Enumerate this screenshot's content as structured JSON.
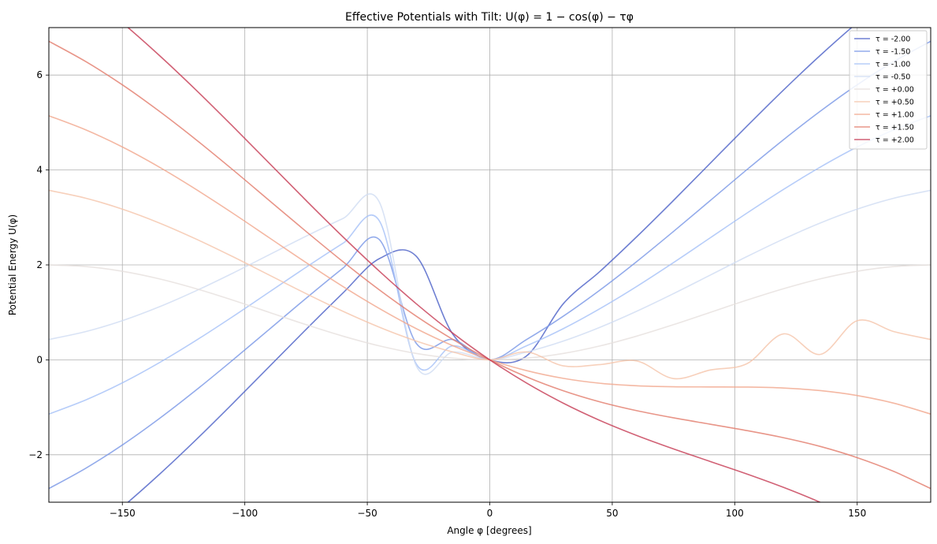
{
  "chart_data": {
    "type": "line",
    "title": "Effective Potentials with Tilt: U(φ) = 1 − cos(φ) − τφ",
    "xlabel": "Angle φ [degrees]",
    "ylabel": "Potential Energy U(φ)",
    "xlim": [
      -180,
      180
    ],
    "ylim": [
      -3,
      7
    ],
    "xticks": [
      -150,
      -100,
      -50,
      0,
      50,
      100,
      150
    ],
    "xtick_labels": [
      "−150",
      "−100",
      "−50",
      "0",
      "50",
      "100",
      "150"
    ],
    "yticks": [
      -2,
      0,
      2,
      4,
      6
    ],
    "ytick_labels": [
      "−2",
      "0",
      "2",
      "4",
      "6"
    ],
    "grid": true,
    "legend_position": "top-right",
    "x": [
      -180,
      -165,
      -150,
      -135,
      -120,
      -105,
      -90,
      -75,
      -60,
      -45,
      -30,
      -15,
      0,
      15,
      30,
      45,
      60,
      75,
      90,
      105,
      120,
      135,
      150,
      165,
      180
    ],
    "series": [
      {
        "name": "τ = -2.00",
        "color": "#4a5fc7",
        "values": [
          -4.283,
          -3.726,
          -3.102,
          -2.419,
          -1.689,
          -0.924,
          -0.142,
          0.641,
          1.405,
          2.135,
          2.181,
          0.534,
          0.0,
          0.081,
          1.181,
          1.864,
          2.594,
          3.358,
          4.142,
          4.924,
          5.689,
          6.419,
          7.102,
          7.726,
          8.283
        ]
      },
      {
        "name": "τ = -1.50",
        "color": "#7896e6",
        "values": [
          -2.712,
          -2.286,
          -1.794,
          -1.241,
          -0.642,
          -0.008,
          0.643,
          1.296,
          1.929,
          2.528,
          0.347,
          0.427,
          0.0,
          0.427,
          0.919,
          1.471,
          2.071,
          2.705,
          3.356,
          4.009,
          4.642,
          5.241,
          5.794,
          6.286,
          6.712
        ]
      },
      {
        "name": "τ = -1.00",
        "color": "#a5c0f8",
        "values": [
          -1.142,
          -0.846,
          -0.485,
          -0.063,
          0.406,
          0.908,
          1.429,
          1.95,
          2.453,
          2.921,
          -0.088,
          0.296,
          0.0,
          0.296,
          0.657,
          1.079,
          1.547,
          2.049,
          2.571,
          3.092,
          3.594,
          4.063,
          4.485,
          4.846,
          5.142
        ]
      },
      {
        "name": "τ = -0.50",
        "color": "#cfdcf2",
        "values": [
          0.429,
          0.594,
          0.825,
          1.115,
          1.453,
          1.824,
          2.215,
          2.605,
          2.976,
          3.314,
          -0.127,
          0.165,
          0.0,
          0.165,
          0.395,
          0.686,
          1.024,
          1.395,
          1.785,
          2.176,
          2.547,
          2.885,
          3.175,
          3.406,
          3.571
        ]
      },
      {
        "name": "τ = +0.00",
        "color": "#e6e0dd",
        "values": [
          2.0,
          1.966,
          1.866,
          1.707,
          1.5,
          1.259,
          1.0,
          0.741,
          0.5,
          0.293,
          0.134,
          0.034,
          0.0,
          0.034,
          0.134,
          0.293,
          0.5,
          0.741,
          1.0,
          1.259,
          1.5,
          1.707,
          1.866,
          1.966,
          2.0
        ]
      },
      {
        "name": "τ = +0.50",
        "color": "#f5c4aa",
        "values": [
          3.571,
          3.406,
          3.175,
          2.885,
          2.547,
          2.176,
          1.785,
          1.395,
          1.024,
          0.686,
          0.395,
          0.165,
          0.0,
          0.165,
          -0.127,
          -0.1,
          -0.024,
          -0.395,
          -0.215,
          -0.081,
          0.547,
          0.115,
          0.825,
          0.594,
          0.429
        ]
      },
      {
        "name": "τ = +1.00",
        "color": "#f1a68c",
        "values": [
          5.142,
          4.846,
          4.485,
          4.063,
          3.594,
          3.092,
          2.571,
          2.049,
          1.547,
          1.079,
          0.657,
          0.296,
          0.0,
          -0.227,
          -0.39,
          -0.494,
          -0.547,
          -0.568,
          -0.571,
          -0.574,
          -0.594,
          -0.649,
          -0.752,
          -0.914,
          -1.142
        ]
      },
      {
        "name": "τ = +1.50",
        "color": "#e27b6a",
        "values": [
          6.712,
          6.286,
          5.794,
          5.241,
          4.642,
          4.009,
          3.356,
          2.705,
          2.071,
          1.471,
          0.919,
          0.427,
          0.0,
          -0.358,
          -0.651,
          -0.886,
          -1.071,
          -1.222,
          -1.356,
          -1.491,
          -1.642,
          -1.826,
          -2.061,
          -2.353,
          -2.712
        ]
      },
      {
        "name": "τ = +2.00",
        "color": "#c63a52",
        "values": [
          8.283,
          7.726,
          7.102,
          6.419,
          5.689,
          4.924,
          4.142,
          3.358,
          2.594,
          1.864,
          1.181,
          0.558,
          0.0,
          -0.489,
          -0.913,
          -1.278,
          -1.594,
          -1.877,
          -2.142,
          -2.406,
          -2.689,
          -3.005,
          -3.37,
          -3.793,
          -4.283
        ]
      }
    ]
  }
}
